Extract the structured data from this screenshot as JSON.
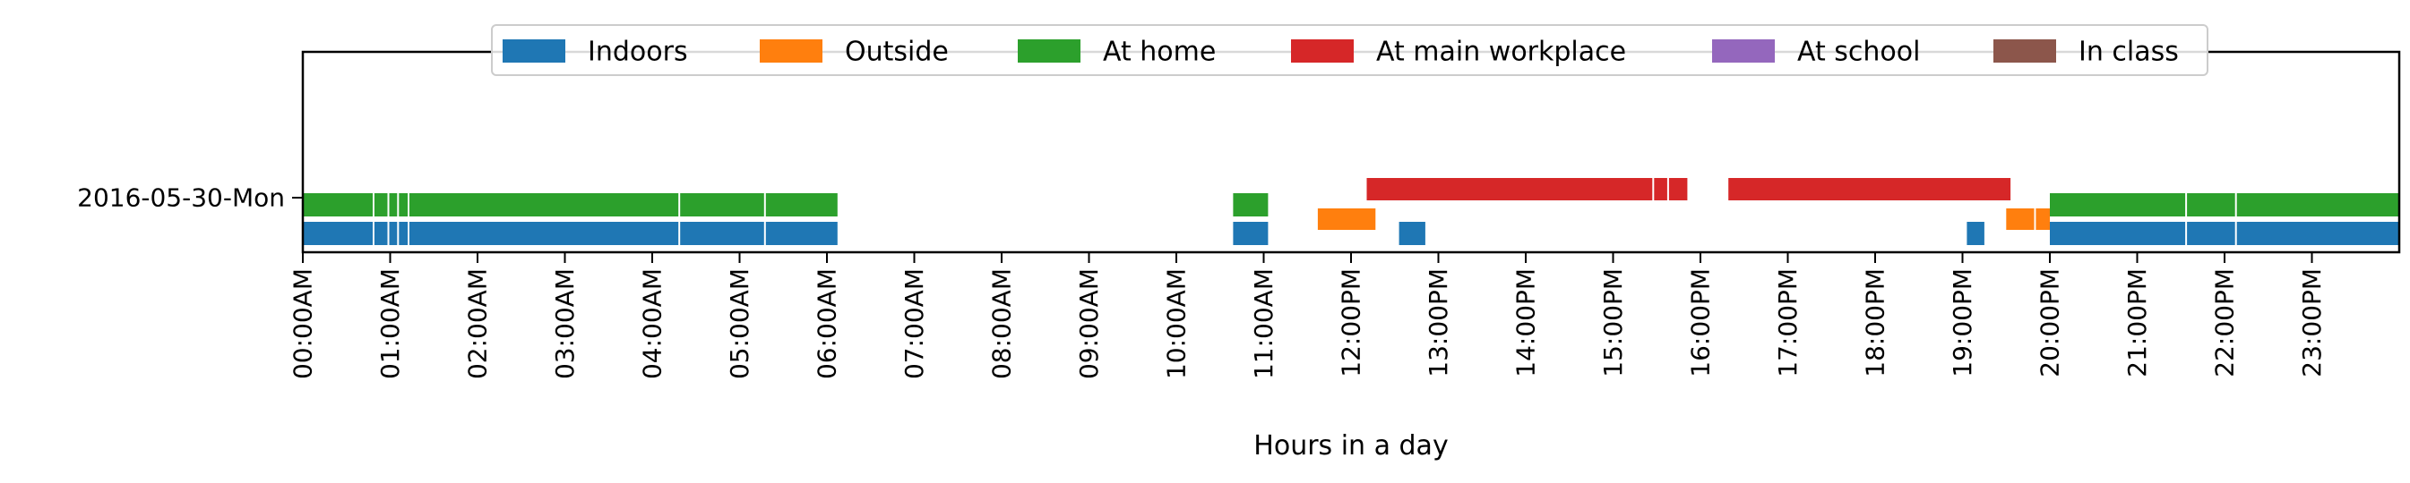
{
  "chart_data": {
    "type": "timeline",
    "title": "",
    "xlabel": "Hours in a day",
    "ylabel": "",
    "xlim": [
      0,
      24
    ],
    "x_ticks": [
      {
        "hour": 0,
        "label": "00:00AM"
      },
      {
        "hour": 1,
        "label": "01:00AM"
      },
      {
        "hour": 2,
        "label": "02:00AM"
      },
      {
        "hour": 3,
        "label": "03:00AM"
      },
      {
        "hour": 4,
        "label": "04:00AM"
      },
      {
        "hour": 5,
        "label": "05:00AM"
      },
      {
        "hour": 6,
        "label": "06:00AM"
      },
      {
        "hour": 7,
        "label": "07:00AM"
      },
      {
        "hour": 8,
        "label": "08:00AM"
      },
      {
        "hour": 9,
        "label": "09:00AM"
      },
      {
        "hour": 10,
        "label": "10:00AM"
      },
      {
        "hour": 11,
        "label": "11:00AM"
      },
      {
        "hour": 12,
        "label": "12:00PM"
      },
      {
        "hour": 13,
        "label": "13:00PM"
      },
      {
        "hour": 14,
        "label": "14:00PM"
      },
      {
        "hour": 15,
        "label": "15:00PM"
      },
      {
        "hour": 16,
        "label": "16:00PM"
      },
      {
        "hour": 17,
        "label": "17:00PM"
      },
      {
        "hour": 18,
        "label": "18:00PM"
      },
      {
        "hour": 19,
        "label": "19:00PM"
      },
      {
        "hour": 20,
        "label": "20:00PM"
      },
      {
        "hour": 21,
        "label": "21:00PM"
      },
      {
        "hour": 22,
        "label": "22:00PM"
      },
      {
        "hour": 23,
        "label": "23:00PM"
      }
    ],
    "y_categories": [
      "2016-05-30-Mon"
    ],
    "legend_position": "top-center",
    "series": [
      {
        "name": "Indoors",
        "color": "#1f77b4",
        "segments": [
          [
            0.0,
            0.8
          ],
          [
            0.82,
            0.97
          ],
          [
            0.99,
            1.08
          ],
          [
            1.1,
            1.2
          ],
          [
            1.22,
            4.3
          ],
          [
            4.32,
            5.28
          ],
          [
            5.3,
            6.12
          ],
          [
            10.65,
            11.05
          ],
          [
            12.55,
            12.85
          ],
          [
            19.05,
            19.25
          ],
          [
            20.0,
            21.55
          ],
          [
            21.57,
            22.12
          ],
          [
            22.14,
            24.0
          ]
        ]
      },
      {
        "name": "Outside",
        "color": "#ff7f0e",
        "segments": [
          [
            11.62,
            12.28
          ],
          [
            19.5,
            19.82
          ],
          [
            19.84,
            20.0
          ]
        ]
      },
      {
        "name": "At home",
        "color": "#2ca02c",
        "segments": [
          [
            0.0,
            0.8
          ],
          [
            0.82,
            0.97
          ],
          [
            0.99,
            1.08
          ],
          [
            1.1,
            1.2
          ],
          [
            1.22,
            4.3
          ],
          [
            4.32,
            5.28
          ],
          [
            5.3,
            6.12
          ],
          [
            10.65,
            11.05
          ],
          [
            20.0,
            21.55
          ],
          [
            21.57,
            22.12
          ],
          [
            22.14,
            24.0
          ]
        ]
      },
      {
        "name": "At main workplace",
        "color": "#d62728",
        "segments": [
          [
            12.18,
            15.45
          ],
          [
            15.47,
            15.62
          ],
          [
            15.64,
            15.85
          ],
          [
            16.32,
            19.55
          ]
        ]
      },
      {
        "name": "At school",
        "color": "#9467bd",
        "segments": []
      },
      {
        "name": "In class",
        "color": "#8c564b",
        "segments": []
      }
    ]
  }
}
